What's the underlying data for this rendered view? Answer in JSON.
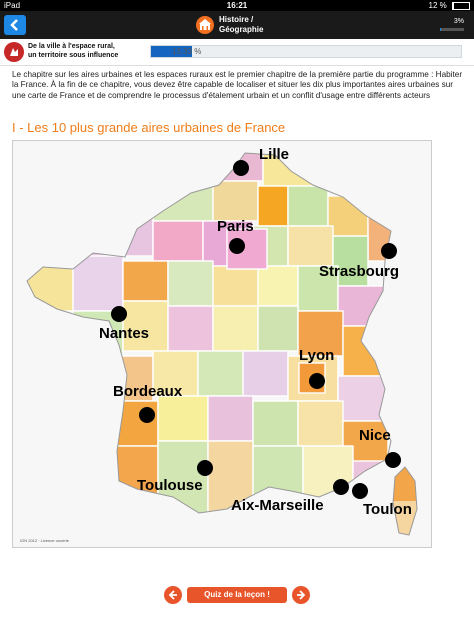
{
  "status_bar": {
    "carrier": "iPad",
    "time": "16:21",
    "battery": "12 %"
  },
  "nav": {
    "title_line1": "Histoire /",
    "title_line2": "Géographie",
    "percent": "3%",
    "percent_value": 0.03
  },
  "chapter": {
    "title_line1": "De la ville à l'espace rural,",
    "title_line2": "un territoire sous influence",
    "progress_label": "13.33 %",
    "progress_value": 0.1333
  },
  "content": {
    "intro": "Le chapitre sur les aires urbaines et les espaces ruraux est le premier chapitre de la première partie du programme : Habiter la France. À la fin de ce chapitre, vous devez être capable de localiser et situer les dix plus importantes aires urbaines sur une carte de France et de comprendre le processus d'étalement urbain et un conflit d'usage entre différents acteurs",
    "section_title": "I - Les 10 plus grande aires urbaines de France"
  },
  "map": {
    "credit": "IGN 2012 · Licence ouverte",
    "cities": [
      "Lille",
      "Paris",
      "Strasbourg",
      "Nantes",
      "Lyon",
      "Bordeaux",
      "Nice",
      "Toulouse",
      "Aix-Marseille",
      "Toulon"
    ]
  },
  "footer": {
    "quiz_label": "Quiz de la leçon !"
  },
  "colors": {
    "accent": "#f07d1a",
    "nav_bg": "#1a1a1a",
    "back_blue": "#1e88e5",
    "quiz_orange": "#e8552a"
  },
  "icons": [
    "back-arrow-icon",
    "history-geo-icon",
    "chapter-icon",
    "prev-arrow-icon",
    "next-arrow-icon"
  ]
}
